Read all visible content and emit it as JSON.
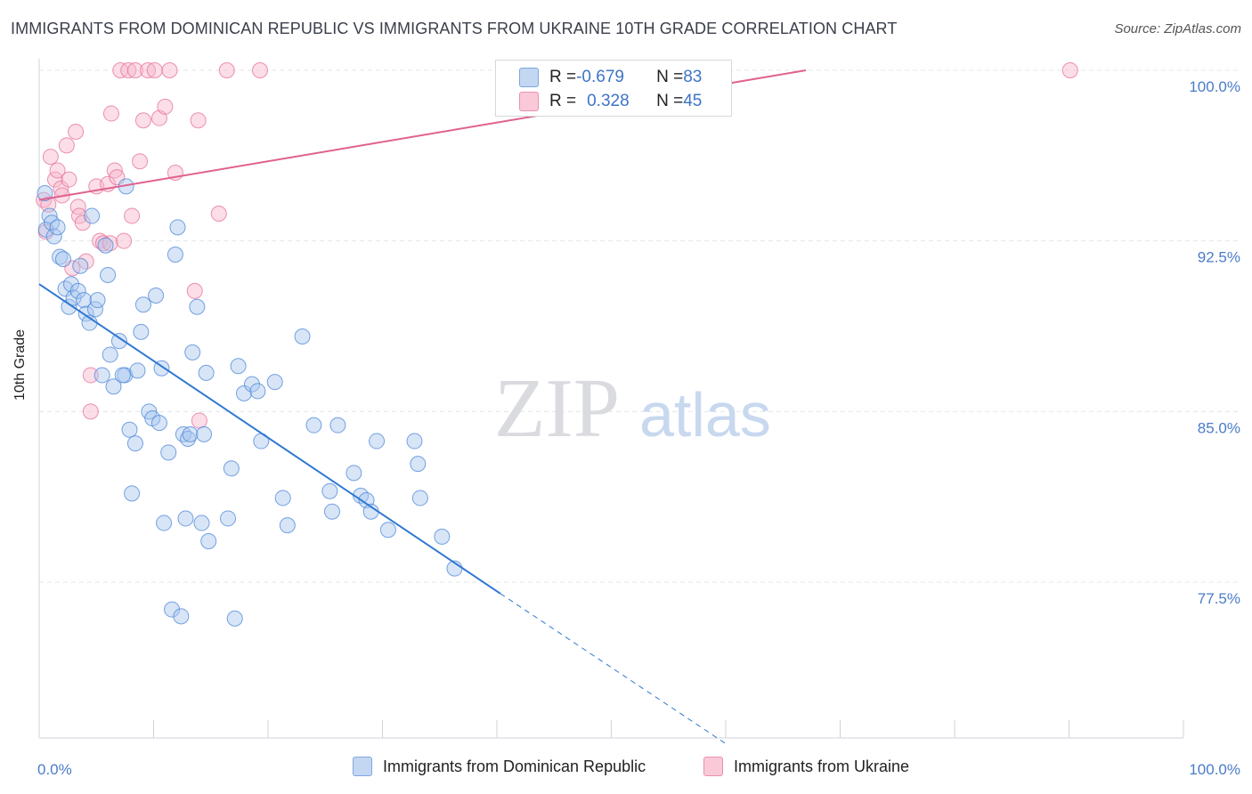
{
  "header": {
    "title": "IMMIGRANTS FROM DOMINICAN REPUBLIC VS IMMIGRANTS FROM UKRAINE 10TH GRADE CORRELATION CHART",
    "source": "Source: ZipAtlas.com"
  },
  "watermark": {
    "zip": "ZIP",
    "atlas": "atlas"
  },
  "legend_top": {
    "rows": [
      {
        "r_label": "R = ",
        "r_value": "-0.679",
        "n_label": "N = ",
        "n_value": "83",
        "color": "#a9c6ee"
      },
      {
        "r_label": "R = ",
        "r_value": "0.328",
        "n_label": "N = ",
        "n_value": "45",
        "color": "#f6b6cb"
      }
    ]
  },
  "legend_bottom": {
    "items": [
      {
        "label": "Immigrants from Dominican Republic",
        "color": "#a9c6ee"
      },
      {
        "label": "Immigrants from Ukraine",
        "color": "#f6b6cb"
      }
    ]
  },
  "chart_data": {
    "type": "scatter",
    "ylabel": "10th Grade",
    "xlabel": "",
    "xlim": [
      0,
      100
    ],
    "ylim": [
      70.4,
      100.5
    ],
    "y_ticks": [
      {
        "value": 100.0,
        "label": "100.0%"
      },
      {
        "value": 92.5,
        "label": "92.5%"
      },
      {
        "value": 85.0,
        "label": "85.0%"
      },
      {
        "value": 77.5,
        "label": "77.5%"
      }
    ],
    "x_ticks": [
      {
        "value": 0,
        "label": "0.0%"
      },
      {
        "value": 100,
        "label": "100.0%"
      }
    ],
    "grid": true,
    "series": [
      {
        "name": "Immigrants from Dominican Republic",
        "color": "#4a86d8",
        "fill": "#a9c6ee",
        "r": -0.679,
        "n": 83,
        "trend": {
          "x0": 0,
          "y0": 90.6,
          "x1": 40.3,
          "y1": 77.0,
          "dash_to_x": 60.0,
          "dash_to_y": 70.4
        },
        "points": [
          [
            0.5,
            94.6
          ],
          [
            0.6,
            93.0
          ],
          [
            0.9,
            93.6
          ],
          [
            1.1,
            93.3
          ],
          [
            1.3,
            92.7
          ],
          [
            1.6,
            93.1
          ],
          [
            1.8,
            91.8
          ],
          [
            2.1,
            91.7
          ],
          [
            2.3,
            90.4
          ],
          [
            2.6,
            89.6
          ],
          [
            2.8,
            90.6
          ],
          [
            3.0,
            90.0
          ],
          [
            3.4,
            90.3
          ],
          [
            3.6,
            91.4
          ],
          [
            3.9,
            89.9
          ],
          [
            4.1,
            89.3
          ],
          [
            4.4,
            88.9
          ],
          [
            4.6,
            93.6
          ],
          [
            4.9,
            89.5
          ],
          [
            5.1,
            89.9
          ],
          [
            5.5,
            86.6
          ],
          [
            5.8,
            92.3
          ],
          [
            6.0,
            91.0
          ],
          [
            6.2,
            87.5
          ],
          [
            6.5,
            86.1
          ],
          [
            7.0,
            88.1
          ],
          [
            7.5,
            86.6
          ],
          [
            7.6,
            94.9
          ],
          [
            7.9,
            84.2
          ],
          [
            8.1,
            81.4
          ],
          [
            8.4,
            83.6
          ],
          [
            8.6,
            86.8
          ],
          [
            8.9,
            88.5
          ],
          [
            9.1,
            89.7
          ],
          [
            9.6,
            85.0
          ],
          [
            9.9,
            84.7
          ],
          [
            10.2,
            90.1
          ],
          [
            10.5,
            84.5
          ],
          [
            10.7,
            86.9
          ],
          [
            10.9,
            80.1
          ],
          [
            11.3,
            83.2
          ],
          [
            11.6,
            76.3
          ],
          [
            11.9,
            91.9
          ],
          [
            12.1,
            93.1
          ],
          [
            12.4,
            76.0
          ],
          [
            12.6,
            84.0
          ],
          [
            12.8,
            80.3
          ],
          [
            13.0,
            83.8
          ],
          [
            13.2,
            84.0
          ],
          [
            13.4,
            87.6
          ],
          [
            13.8,
            89.6
          ],
          [
            14.2,
            80.1
          ],
          [
            14.4,
            84.0
          ],
          [
            14.6,
            86.7
          ],
          [
            14.8,
            79.3
          ],
          [
            16.5,
            80.3
          ],
          [
            16.8,
            82.5
          ],
          [
            17.1,
            75.9
          ],
          [
            17.4,
            87.0
          ],
          [
            17.9,
            85.8
          ],
          [
            18.6,
            86.2
          ],
          [
            19.1,
            85.9
          ],
          [
            19.4,
            83.7
          ],
          [
            20.6,
            86.3
          ],
          [
            21.3,
            81.2
          ],
          [
            21.7,
            80.0
          ],
          [
            23.0,
            88.3
          ],
          [
            24.0,
            84.4
          ],
          [
            25.4,
            81.5
          ],
          [
            25.6,
            80.6
          ],
          [
            26.1,
            84.4
          ],
          [
            27.5,
            82.3
          ],
          [
            28.1,
            81.3
          ],
          [
            28.6,
            81.1
          ],
          [
            29.0,
            80.6
          ],
          [
            29.5,
            83.7
          ],
          [
            30.5,
            79.8
          ],
          [
            32.8,
            83.7
          ],
          [
            33.1,
            82.7
          ],
          [
            33.3,
            81.2
          ],
          [
            35.2,
            79.5
          ],
          [
            36.3,
            78.1
          ],
          [
            7.3,
            86.6
          ]
        ]
      },
      {
        "name": "Immigrants from Ukraine",
        "color": "#e56f98",
        "fill": "#f6b6cb",
        "r": 0.328,
        "n": 45,
        "trend": {
          "x0": 0,
          "y0": 94.3,
          "x1": 67.0,
          "y1": 100.0
        },
        "points": [
          [
            0.4,
            94.3
          ],
          [
            0.6,
            92.9
          ],
          [
            0.8,
            94.1
          ],
          [
            1.0,
            96.2
          ],
          [
            1.4,
            95.2
          ],
          [
            1.6,
            95.6
          ],
          [
            1.9,
            94.8
          ],
          [
            2.0,
            94.5
          ],
          [
            2.4,
            96.7
          ],
          [
            2.6,
            95.2
          ],
          [
            2.9,
            91.3
          ],
          [
            3.2,
            97.3
          ],
          [
            3.4,
            94.0
          ],
          [
            3.5,
            93.6
          ],
          [
            3.8,
            93.3
          ],
          [
            4.1,
            91.6
          ],
          [
            4.5,
            86.6
          ],
          [
            4.5,
            85.0
          ],
          [
            5.0,
            94.9
          ],
          [
            5.3,
            92.5
          ],
          [
            5.6,
            92.4
          ],
          [
            6.0,
            95.0
          ],
          [
            6.2,
            92.4
          ],
          [
            6.3,
            98.1
          ],
          [
            6.6,
            95.6
          ],
          [
            6.8,
            95.3
          ],
          [
            7.1,
            100.0
          ],
          [
            7.4,
            92.5
          ],
          [
            7.8,
            100.0
          ],
          [
            8.1,
            93.6
          ],
          [
            8.4,
            100.0
          ],
          [
            8.8,
            96.0
          ],
          [
            9.1,
            97.8
          ],
          [
            9.5,
            100.0
          ],
          [
            10.1,
            100.0
          ],
          [
            10.5,
            97.9
          ],
          [
            11.0,
            98.4
          ],
          [
            11.4,
            100.0
          ],
          [
            11.9,
            95.5
          ],
          [
            13.6,
            90.3
          ],
          [
            13.9,
            97.8
          ],
          [
            14.0,
            84.6
          ],
          [
            15.7,
            93.7
          ],
          [
            16.4,
            100.0
          ],
          [
            19.3,
            100.0
          ]
        ],
        "outliers": [
          [
            90.1,
            100.0
          ]
        ]
      }
    ]
  }
}
